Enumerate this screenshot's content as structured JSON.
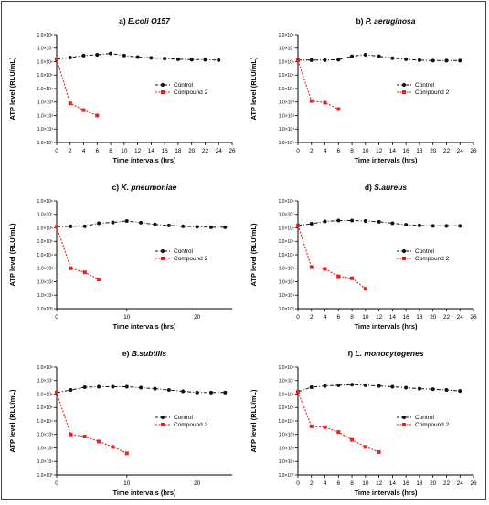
{
  "chart_data": [
    {
      "type": "line",
      "panel": "a)",
      "title": "E.coli O157",
      "xlabel": "Time intervals (hrs)",
      "ylabel": "ATP level (RLU/mL)",
      "xlim": [
        0,
        26
      ],
      "x_ticks": [
        0,
        2,
        4,
        6,
        8,
        10,
        12,
        14,
        16,
        18,
        20,
        22,
        24,
        26
      ],
      "y_scale": "log",
      "ylim": [
        1,
        100000000
      ],
      "y_tick_labels": [
        "1.0×10⁰",
        "1.0×10¹",
        "1.0×10²",
        "1.0×10³",
        "1.0×10⁴",
        "1.0×10⁵",
        "1.0×10⁶",
        "1.0×10⁷",
        "1.0×10⁸"
      ],
      "legend_position": "right",
      "series": [
        {
          "name": "Control",
          "color": "#111111",
          "marker": "circle",
          "x": [
            0,
            2,
            4,
            6,
            8,
            10,
            12,
            14,
            16,
            18,
            20,
            22,
            24
          ],
          "y": [
            1500000,
            2000000,
            2800000,
            3200000,
            4000000,
            2800000,
            2200000,
            1900000,
            1700000,
            1500000,
            1400000,
            1400000,
            1300000
          ]
        },
        {
          "name": "Compound 2",
          "color": "#e8211d",
          "marker": "square",
          "x": [
            0,
            2,
            4,
            6
          ],
          "y": [
            1500000,
            800,
            250,
            100
          ]
        }
      ]
    },
    {
      "type": "line",
      "panel": "b)",
      "title": "P. aeruginosa",
      "xlabel": "Time intervals (hrs)",
      "ylabel": "ATP level (RLU/mL)",
      "xlim": [
        0,
        26
      ],
      "x_ticks": [
        0,
        2,
        4,
        6,
        8,
        10,
        12,
        14,
        16,
        18,
        20,
        22,
        24,
        26
      ],
      "y_scale": "log",
      "ylim": [
        1,
        100000000
      ],
      "y_tick_labels": [
        "1.0×10⁰",
        "1.0×10¹",
        "1.0×10²",
        "1.0×10³",
        "1.0×10⁴",
        "1.0×10⁵",
        "1.0×10⁶",
        "1.0×10⁷",
        "1.0×10⁸"
      ],
      "legend_position": "right",
      "series": [
        {
          "name": "Control",
          "color": "#111111",
          "marker": "circle",
          "x": [
            0,
            2,
            4,
            6,
            8,
            10,
            12,
            14,
            16,
            18,
            20,
            22,
            24
          ],
          "y": [
            1300000,
            1300000,
            1300000,
            1400000,
            2500000,
            3200000,
            2500000,
            1800000,
            1500000,
            1300000,
            1200000,
            1200000,
            1200000
          ]
        },
        {
          "name": "Compound 2",
          "color": "#e8211d",
          "marker": "square",
          "x": [
            0,
            2,
            4,
            6
          ],
          "y": [
            1200000,
            1200,
            900,
            300
          ]
        }
      ]
    },
    {
      "type": "line",
      "panel": "c)",
      "title": "K. pneumoniae",
      "xlabel": "Time intervals (hrs)",
      "ylabel": "ATP level (RLU/mL)",
      "xlim": [
        0,
        25
      ],
      "x_ticks": [
        0,
        10,
        20
      ],
      "y_scale": "log",
      "ylim": [
        1,
        100000000
      ],
      "y_tick_labels": [
        "1.0×10⁰",
        "1.0×10¹",
        "1.0×10²",
        "1.0×10³",
        "1.0×10⁴",
        "1.0×10⁵",
        "1.0×10⁶",
        "1.0×10⁷",
        "1.0×10⁸"
      ],
      "legend_position": "right",
      "series": [
        {
          "name": "Control",
          "color": "#111111",
          "marker": "circle",
          "x": [
            0,
            2,
            4,
            6,
            8,
            10,
            12,
            14,
            16,
            18,
            20,
            22,
            24
          ],
          "y": [
            1200000,
            1300000,
            1300000,
            2200000,
            2500000,
            3200000,
            2400000,
            1800000,
            1500000,
            1300000,
            1200000,
            1100000,
            1100000
          ]
        },
        {
          "name": "Compound 2",
          "color": "#e8211d",
          "marker": "square",
          "x": [
            0,
            2,
            4,
            6
          ],
          "y": [
            1200000,
            1000,
            500,
            150
          ]
        }
      ]
    },
    {
      "type": "line",
      "panel": "d)",
      "title": "S.aureus",
      "xlabel": "Time intervals (hrs)",
      "ylabel": "ATP level (RLU/mL)",
      "xlim": [
        0,
        26
      ],
      "x_ticks": [
        0,
        2,
        4,
        6,
        8,
        10,
        12,
        14,
        16,
        18,
        20,
        22,
        24,
        26
      ],
      "y_scale": "log",
      "ylim": [
        1,
        100000000
      ],
      "y_tick_labels": [
        "1.0×10⁰",
        "1.0×10¹",
        "1.0×10²",
        "1.0×10³",
        "1.0×10⁴",
        "1.0×10⁵",
        "1.0×10⁶",
        "1.0×10⁷",
        "1.0×10⁸"
      ],
      "legend_position": "right",
      "series": [
        {
          "name": "Control",
          "color": "#111111",
          "marker": "circle",
          "x": [
            0,
            2,
            4,
            6,
            8,
            10,
            12,
            14,
            16,
            18,
            20,
            22,
            24
          ],
          "y": [
            1500000,
            2000000,
            3000000,
            3500000,
            3500000,
            3200000,
            2800000,
            2200000,
            1700000,
            1500000,
            1400000,
            1400000,
            1400000
          ]
        },
        {
          "name": "Compound 2",
          "color": "#e8211d",
          "marker": "square",
          "x": [
            0,
            2,
            4,
            6,
            8,
            10
          ],
          "y": [
            1500000,
            1200,
            900,
            250,
            180,
            30
          ]
        }
      ]
    },
    {
      "type": "line",
      "panel": "e)",
      "title": "B.subtilis",
      "xlabel": "Time intervals (hrs)",
      "ylabel": "ATP level (RLU/mL)",
      "xlim": [
        0,
        25
      ],
      "x_ticks": [
        0,
        10,
        20
      ],
      "y_scale": "log",
      "ylim": [
        1,
        100000000
      ],
      "y_tick_labels": [
        "1.0×10⁰",
        "1.0×10¹",
        "1.0×10²",
        "1.0×10³",
        "1.0×10⁴",
        "1.0×10⁵",
        "1.0×10⁶",
        "1.0×10⁷",
        "1.0×10⁸"
      ],
      "legend_position": "right",
      "series": [
        {
          "name": "Control",
          "color": "#111111",
          "marker": "circle",
          "x": [
            0,
            2,
            4,
            6,
            8,
            10,
            12,
            14,
            16,
            18,
            20,
            22,
            24
          ],
          "y": [
            1300000,
            2000000,
            3200000,
            3500000,
            3500000,
            3500000,
            3000000,
            2500000,
            2000000,
            1600000,
            1300000,
            1300000,
            1300000
          ]
        },
        {
          "name": "Compound 2",
          "color": "#e8211d",
          "marker": "square",
          "x": [
            0,
            2,
            4,
            6,
            8,
            10
          ],
          "y": [
            1300000,
            1000,
            700,
            300,
            120,
            40
          ]
        }
      ]
    },
    {
      "type": "line",
      "panel": "f)",
      "title": "L. monocytogenes",
      "xlabel": "Time intervals (hrs)",
      "ylabel": "ATP level (RLU/mL)",
      "xlim": [
        0,
        26
      ],
      "x_ticks": [
        0,
        2,
        4,
        6,
        8,
        10,
        12,
        14,
        16,
        18,
        20,
        22,
        24,
        26
      ],
      "y_scale": "log",
      "ylim": [
        1,
        100000000
      ],
      "y_tick_labels": [
        "1.0×10⁰",
        "1.0×10¹",
        "1.0×10²",
        "1.0×10³",
        "1.0×10⁴",
        "1.0×10⁵",
        "1.0×10⁶",
        "1.0×10⁷",
        "1.0×10⁸"
      ],
      "legend_position": "right",
      "series": [
        {
          "name": "Control",
          "color": "#111111",
          "marker": "circle",
          "x": [
            0,
            2,
            4,
            6,
            8,
            10,
            12,
            14,
            16,
            18,
            20,
            22,
            24
          ],
          "y": [
            1500000,
            3200000,
            4000000,
            4500000,
            5000000,
            4500000,
            4000000,
            3500000,
            3000000,
            2500000,
            2300000,
            2000000,
            1700000
          ]
        },
        {
          "name": "Compound 2",
          "color": "#e8211d",
          "marker": "square",
          "x": [
            0,
            2,
            4,
            6,
            8,
            10,
            12
          ],
          "y": [
            1500000,
            4000,
            3500,
            1500,
            400,
            120,
            50
          ]
        }
      ]
    }
  ]
}
